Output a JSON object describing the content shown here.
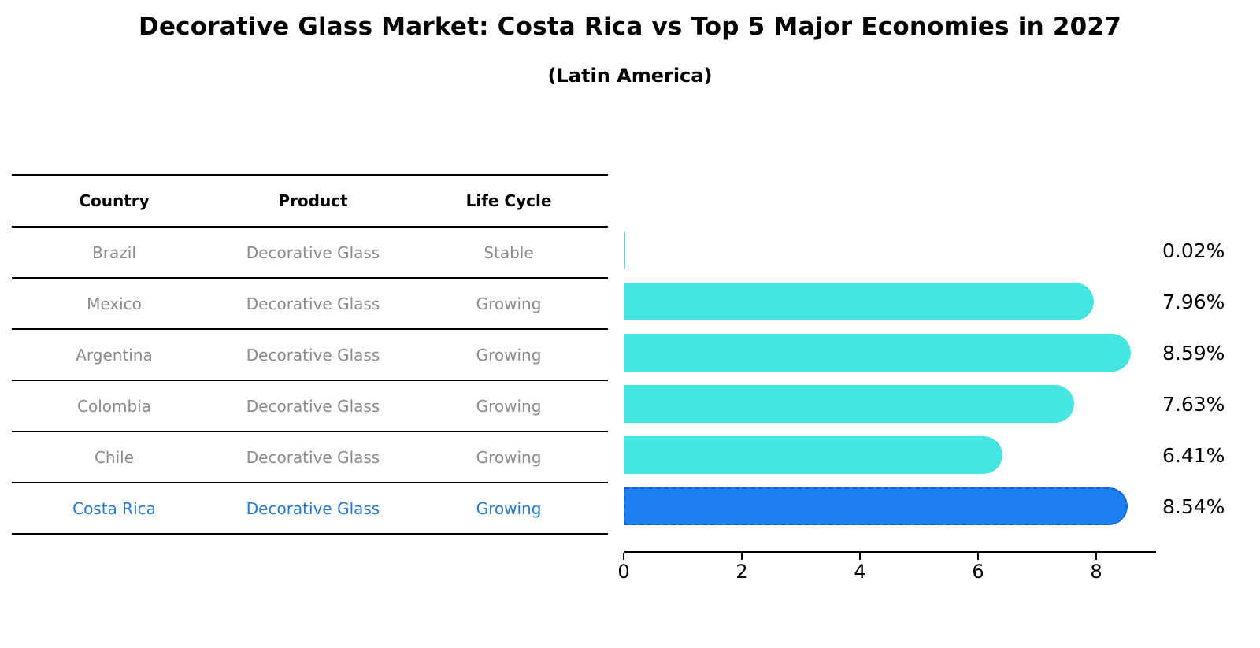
{
  "title": "Decorative Glass Market: Costa Rica vs Top 5 Major Economies in 2027",
  "subtitle": "(Latin America)",
  "table": {
    "headers": [
      "Country",
      "Product",
      "Life Cycle"
    ],
    "rows": [
      {
        "country": "Brazil",
        "product": "Decorative Glass",
        "life_cycle": "Stable"
      },
      {
        "country": "Mexico",
        "product": "Decorative Glass",
        "life_cycle": "Growing"
      },
      {
        "country": "Argentina",
        "product": "Decorative Glass",
        "life_cycle": "Growing"
      },
      {
        "country": "Colombia",
        "product": "Decorative Glass",
        "life_cycle": "Growing"
      },
      {
        "country": "Chile",
        "product": "Decorative Glass",
        "life_cycle": "Growing"
      },
      {
        "country": "Costa Rica",
        "product": "Decorative Glass",
        "life_cycle": "Growing"
      }
    ]
  },
  "chart_data": {
    "type": "bar",
    "orientation": "horizontal",
    "title": "Decorative Glass Market: Costa Rica vs Top 5 Major Economies in 2027",
    "subtitle": "(Latin America)",
    "categories": [
      "Brazil",
      "Mexico",
      "Argentina",
      "Colombia",
      "Chile",
      "Costa Rica"
    ],
    "values": [
      0.02,
      7.96,
      8.59,
      7.63,
      6.41,
      8.54
    ],
    "value_labels": [
      "0.02%",
      "7.96%",
      "8.59%",
      "7.63%",
      "6.41%",
      "8.54%"
    ],
    "x_ticks": [
      "0",
      "2",
      "4",
      "6",
      "8"
    ],
    "xlim": [
      0,
      9
    ],
    "grid": false,
    "legend": false,
    "bar_color": "#45e6e2",
    "highlight_color": "#1e80f0",
    "highlight_edge_color": "#0c60d8",
    "highlight_index": 5,
    "highlight_text_color": "#2878c8",
    "row_text_color": "#8b8b8b"
  }
}
